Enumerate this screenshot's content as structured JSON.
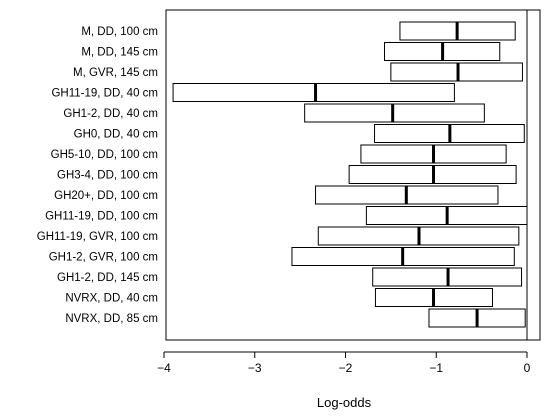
{
  "chart_data": {
    "type": "boxplot",
    "xlabel": "Log-odds",
    "ylabel": "",
    "xlim": [
      -4.2,
      0.15
    ],
    "xticks": [
      -4,
      -3,
      -2,
      -1,
      0
    ],
    "reference_line_x": 0,
    "grid": false,
    "categories": [
      "M, DD, 100 cm",
      "M, DD, 145 cm",
      "M, GVR, 145 cm",
      "GH11-19, DD, 40 cm",
      "GH1-2, DD, 40 cm",
      "GH0, DD, 40 cm",
      "GH5-10, DD, 100 cm",
      "GH3-4, DD, 100 cm",
      "GH20+, DD, 100 cm",
      "GH11-19, DD, 100 cm",
      "GH11-19, GVR, 100 cm",
      "GH1-2, GVR, 100 cm",
      "GH1-2, DD, 145 cm",
      "NVRX, DD, 40 cm",
      "NVRX, DD, 85 cm"
    ],
    "boxes": [
      {
        "low": -1.4,
        "median": -0.77,
        "high": -0.13
      },
      {
        "low": -1.57,
        "median": -0.93,
        "high": -0.3
      },
      {
        "low": -1.5,
        "median": -0.76,
        "high": -0.05
      },
      {
        "low": -3.9,
        "median": -2.33,
        "high": -0.8
      },
      {
        "low": -2.45,
        "median": -1.48,
        "high": -0.47
      },
      {
        "low": -1.68,
        "median": -0.85,
        "high": -0.03
      },
      {
        "low": -1.83,
        "median": -1.03,
        "high": -0.23
      },
      {
        "low": -1.96,
        "median": -1.03,
        "high": -0.12
      },
      {
        "low": -2.33,
        "median": -1.33,
        "high": -0.32
      },
      {
        "low": -1.77,
        "median": -0.88,
        "high": 0.0
      },
      {
        "low": -2.3,
        "median": -1.19,
        "high": -0.09
      },
      {
        "low": -2.59,
        "median": -1.37,
        "high": -0.14
      },
      {
        "low": -1.7,
        "median": -0.87,
        "high": -0.06
      },
      {
        "low": -1.67,
        "median": -1.03,
        "high": -0.38
      },
      {
        "low": -1.08,
        "median": -0.55,
        "high": -0.02
      }
    ]
  }
}
